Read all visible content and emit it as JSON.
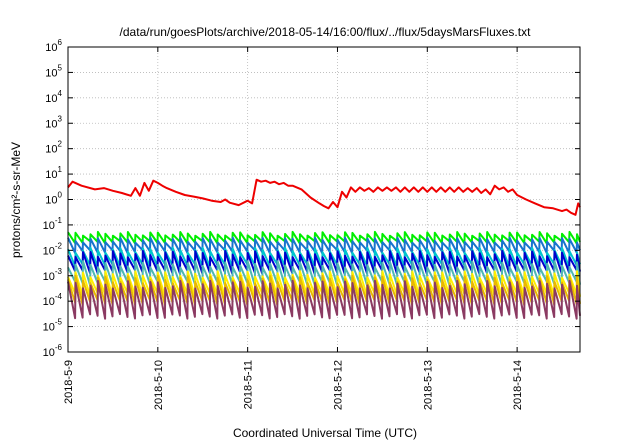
{
  "chart_data": {
    "type": "line",
    "title": "/data/run/goesPlots/archive/2018-05-14/16:00/flux/../flux/5daysMarsFluxes.txt",
    "xlabel": "Coordinated Universal Time (UTC)",
    "ylabel": "protons/cm²-s-sr-MeV",
    "y_scale": "log",
    "ylim": [
      1e-06,
      1000000
    ],
    "xlim_days": [
      0,
      5.7
    ],
    "y_ticks": [
      {
        "value": -6,
        "base": "10",
        "exp": "-6"
      },
      {
        "value": -5,
        "base": "10",
        "exp": "-5"
      },
      {
        "value": -4,
        "base": "10",
        "exp": "-4"
      },
      {
        "value": -3,
        "base": "10",
        "exp": "-3"
      },
      {
        "value": -2,
        "base": "10",
        "exp": "-2"
      },
      {
        "value": -1,
        "base": "10",
        "exp": "-1"
      },
      {
        "value": 0,
        "base": "10",
        "exp": "0"
      },
      {
        "value": 1,
        "base": "10",
        "exp": "1"
      },
      {
        "value": 2,
        "base": "10",
        "exp": "2"
      },
      {
        "value": 3,
        "base": "10",
        "exp": "3"
      },
      {
        "value": 4,
        "base": "10",
        "exp": "4"
      },
      {
        "value": 5,
        "base": "10",
        "exp": "5"
      },
      {
        "value": 6,
        "base": "10",
        "exp": "6"
      }
    ],
    "x_ticks": [
      {
        "day": 0,
        "label": "2018-5-9"
      },
      {
        "day": 1,
        "label": "2018-5-10"
      },
      {
        "day": 2,
        "label": "2018-5-11"
      },
      {
        "day": 3,
        "label": "2018-5-12"
      },
      {
        "day": 4,
        "label": "2018-5-13"
      },
      {
        "day": 5,
        "label": "2018-5-14"
      }
    ],
    "grid": true,
    "series": [
      {
        "color": "#ee0000",
        "x": [
          0,
          0.05,
          0.15,
          0.3,
          0.4,
          0.5,
          0.6,
          0.7,
          0.75,
          0.8,
          0.85,
          0.9,
          0.95,
          1.0,
          1.05,
          1.1,
          1.2,
          1.3,
          1.4,
          1.5,
          1.6,
          1.7,
          1.75,
          1.8,
          1.9,
          2.0,
          2.05,
          2.1,
          2.15,
          2.2,
          2.25,
          2.3,
          2.35,
          2.4,
          2.45,
          2.5,
          2.6,
          2.7,
          2.8,
          2.85,
          2.9,
          2.95,
          3.0,
          3.05,
          3.1,
          3.15,
          3.2,
          3.25,
          3.3,
          3.35,
          3.4,
          3.45,
          3.5,
          3.55,
          3.6,
          3.65,
          3.7,
          3.75,
          3.8,
          3.85,
          3.9,
          3.95,
          4.0,
          4.05,
          4.1,
          4.15,
          4.2,
          4.25,
          4.3,
          4.35,
          4.4,
          4.45,
          4.5,
          4.55,
          4.6,
          4.65,
          4.7,
          4.75,
          4.8,
          4.85,
          4.9,
          4.95,
          5.0,
          5.1,
          5.2,
          5.3,
          5.4,
          5.5,
          5.55,
          5.6,
          5.65,
          5.68,
          5.7
        ],
        "y": [
          3.0,
          5.0,
          3.5,
          2.5,
          2.8,
          2.2,
          1.8,
          1.4,
          2.8,
          1.4,
          4.5,
          2.2,
          5.5,
          4.5,
          3.5,
          2.8,
          2.0,
          1.5,
          1.3,
          1.1,
          0.9,
          0.8,
          1.0,
          0.75,
          0.6,
          0.9,
          0.7,
          6.0,
          5.0,
          5.5,
          4.5,
          5.0,
          4.0,
          4.5,
          3.5,
          3.5,
          2.5,
          1.2,
          0.7,
          0.55,
          0.45,
          0.8,
          0.5,
          2.0,
          1.2,
          3.0,
          2.0,
          3.0,
          2.2,
          2.8,
          2.0,
          3.0,
          2.2,
          3.0,
          2.2,
          3.0,
          2.0,
          3.0,
          2.0,
          3.0,
          2.0,
          3.0,
          2.0,
          3.0,
          2.0,
          3.0,
          2.0,
          3.0,
          2.0,
          3.0,
          2.0,
          2.8,
          2.0,
          2.8,
          1.8,
          2.5,
          1.6,
          3.5,
          2.5,
          3.0,
          2.0,
          2.5,
          1.5,
          1.0,
          0.7,
          0.5,
          0.45,
          0.35,
          0.4,
          0.3,
          0.25,
          0.7,
          0.5
        ]
      },
      {
        "color": "#00ee00",
        "low": -1.68,
        "high": -1.35,
        "amp_var": 0.15
      },
      {
        "color": "#1874cd",
        "low": -2.05,
        "high": -1.6,
        "amp_var": 0.2
      },
      {
        "color": "#00c5cd",
        "low": -2.6,
        "high": -2.0,
        "amp_var": 0.2
      },
      {
        "color": "#0000cd",
        "low": -2.85,
        "high": -2.15,
        "amp_var": 0.25
      },
      {
        "color": "#4eb8b2",
        "low": -3.3,
        "high": -2.55,
        "amp_var": 0.25
      },
      {
        "color": "#ffee00",
        "low": -3.75,
        "high": -2.95,
        "amp_var": 0.25
      },
      {
        "color": "#e8b800",
        "low": -4.05,
        "high": -3.15,
        "amp_var": 0.3
      },
      {
        "color": "#8b3a62",
        "low": -4.6,
        "high": -3.35,
        "amp_var": 0.3
      }
    ]
  }
}
